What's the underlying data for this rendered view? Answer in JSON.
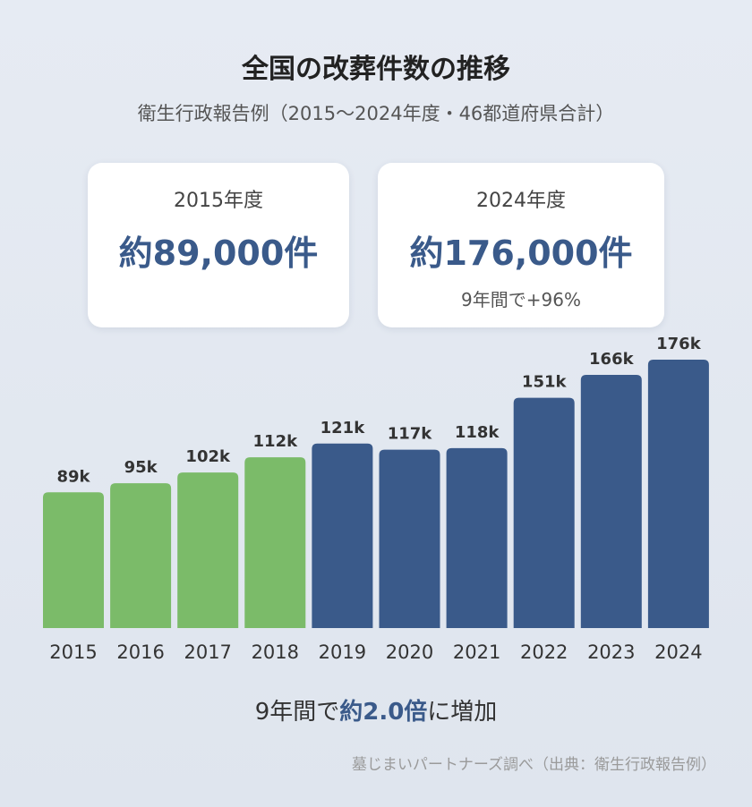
{
  "header": {
    "title": "全国の改葬件数の推移",
    "subtitle": "衛生行政報告例（2015〜2024年度・46都道府県合計）"
  },
  "cards": {
    "left": {
      "year": "2015年度",
      "value": "約89,000件"
    },
    "right": {
      "year": "2024年度",
      "value": "約176,000件",
      "note": "9年間で+96%"
    }
  },
  "summary": {
    "prefix": "9年間で",
    "emphasis": "約2.0倍",
    "suffix": "に増加"
  },
  "source": "墓じまいパートナーズ調べ（出典：衛生行政報告例）",
  "colors": {
    "early": "#7bbb69",
    "late": "#3a5a8a",
    "accent": "#3a5a8a"
  },
  "chart_data": {
    "type": "bar",
    "categories": [
      "2015",
      "2016",
      "2017",
      "2018",
      "2019",
      "2020",
      "2021",
      "2022",
      "2023",
      "2024"
    ],
    "values": [
      89,
      95,
      102,
      112,
      121,
      117,
      118,
      151,
      166,
      176
    ],
    "data_labels": [
      "89k",
      "95k",
      "102k",
      "112k",
      "121k",
      "117k",
      "118k",
      "151k",
      "166k",
      "176k"
    ],
    "bar_colors": [
      "early",
      "early",
      "early",
      "early",
      "late",
      "late",
      "late",
      "late",
      "late",
      "late"
    ],
    "title": "全国の改葬件数の推移",
    "xlabel": "",
    "ylabel": "",
    "ylim": [
      0,
      176
    ],
    "grid": false,
    "legend": "none"
  }
}
